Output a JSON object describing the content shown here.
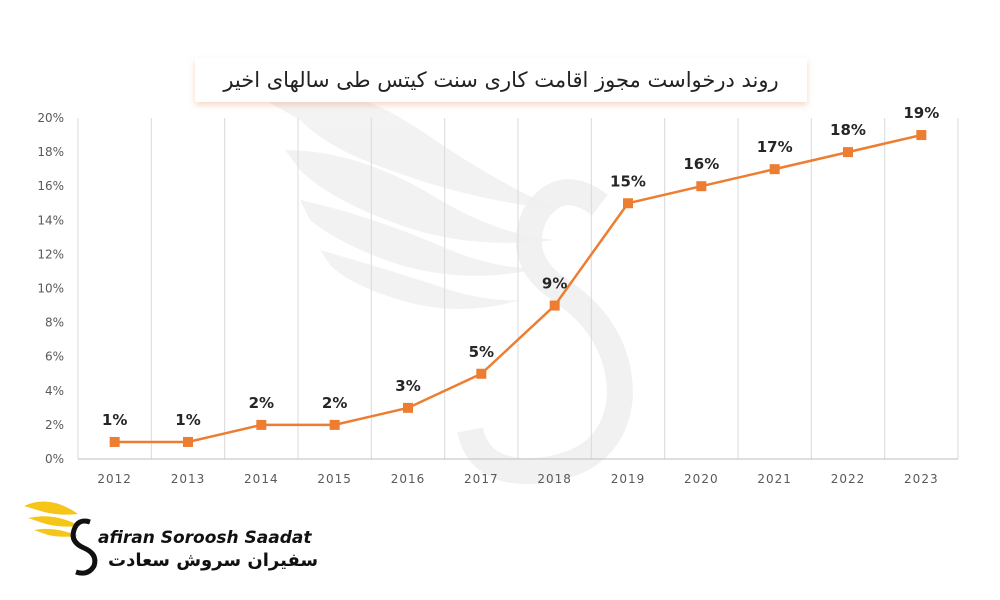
{
  "chart_data": {
    "type": "line",
    "title": "روند درخواست مجوز اقامت کاری سنت کیتس طی سالهای اخیر",
    "x": [
      "2012",
      "2013",
      "2014",
      "2015",
      "2016",
      "2017",
      "2018",
      "2019",
      "2020",
      "2021",
      "2022",
      "2023"
    ],
    "values": [
      1,
      1,
      2,
      2,
      3,
      5,
      9,
      15,
      16,
      17,
      18,
      19
    ],
    "data_labels": [
      "1%",
      "1%",
      "2%",
      "2%",
      "3%",
      "5%",
      "9%",
      "15%",
      "16%",
      "17%",
      "18%",
      "19%"
    ],
    "ylim": [
      0,
      20
    ],
    "yticks": [
      "0%",
      "2%",
      "4%",
      "6%",
      "8%",
      "10%",
      "12%",
      "14%",
      "16%",
      "18%",
      "20%"
    ],
    "grid": "vertical",
    "line_color": "#ED7D31",
    "marker_color": "#ED7D31",
    "axis_text_color": "#595959"
  },
  "logo": {
    "name_en": "afiran Soroosh Saadat",
    "name_fa": "سفیران سروش سعادت",
    "accent_color": "#F5C518",
    "icon": "winged-s-logo-icon"
  }
}
